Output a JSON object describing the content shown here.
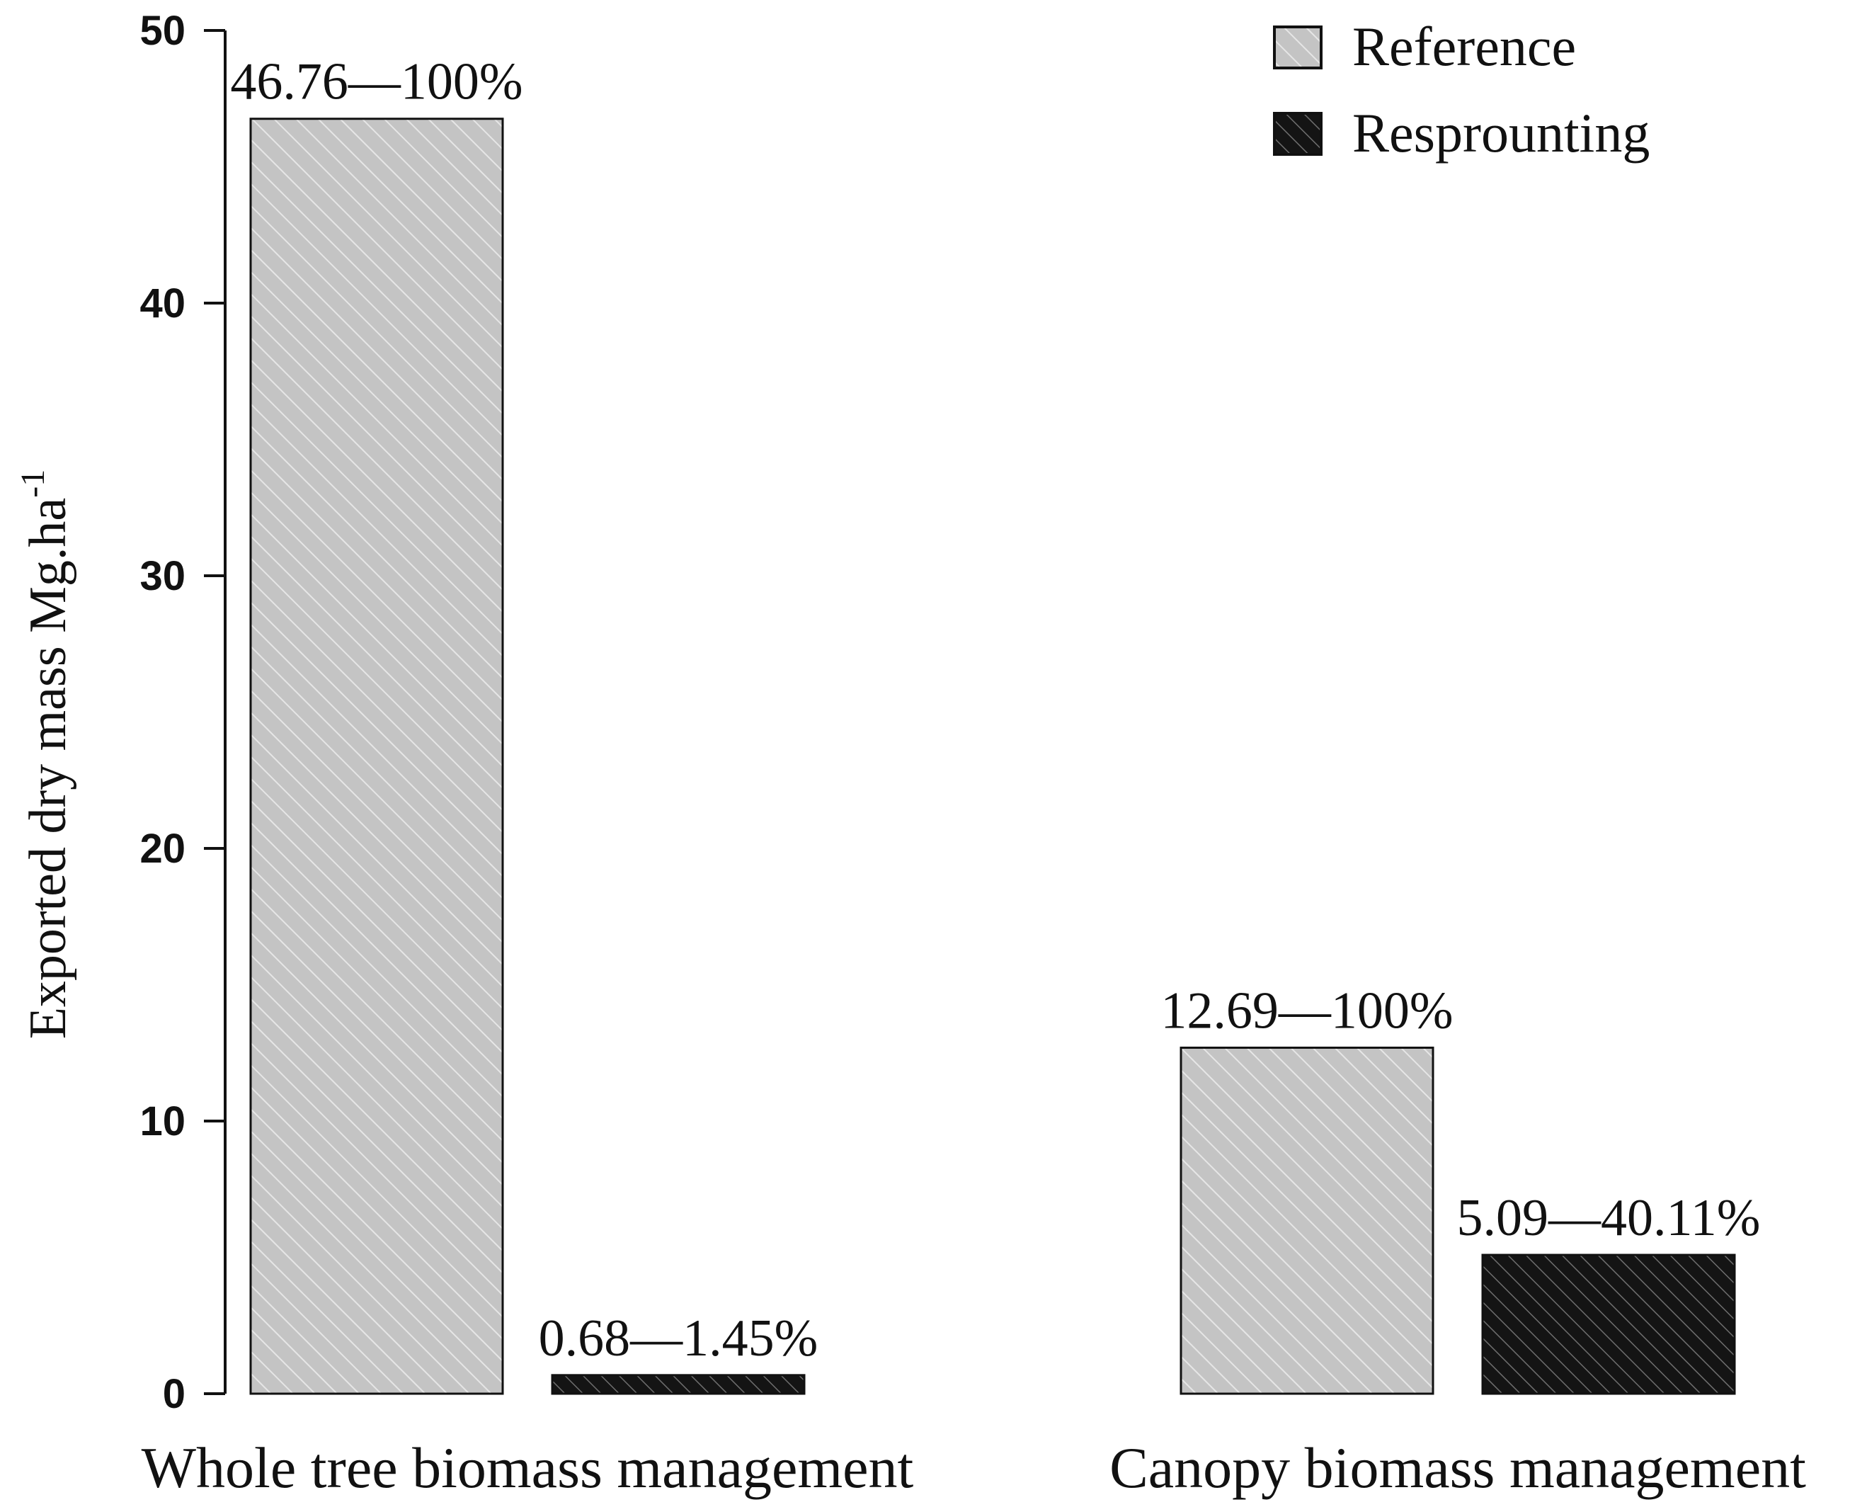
{
  "chart_data": {
    "type": "bar",
    "categories": [
      "Whole tree biomass management",
      "Canopy biomass management"
    ],
    "series": [
      {
        "name": "Reference",
        "values": [
          46.76,
          12.69
        ],
        "labels": [
          "46.76—100%",
          "12.69—100%"
        ],
        "color": "#c4c4c4"
      },
      {
        "name": "Resprounting",
        "values": [
          0.68,
          5.09
        ],
        "labels": [
          "0.68—1.45%",
          "5.09—40.11%"
        ],
        "color": "#141414"
      }
    ],
    "xlabel": "",
    "ylabel": "Exported dry mass Mg.ha",
    "ylabel_superscript": "-1",
    "ylim": [
      0,
      50
    ],
    "yticks": [
      0,
      10,
      20,
      30,
      40,
      50
    ],
    "grid": false,
    "legend_position": "top-right",
    "legend": [
      "Reference",
      "Resprounting"
    ]
  }
}
